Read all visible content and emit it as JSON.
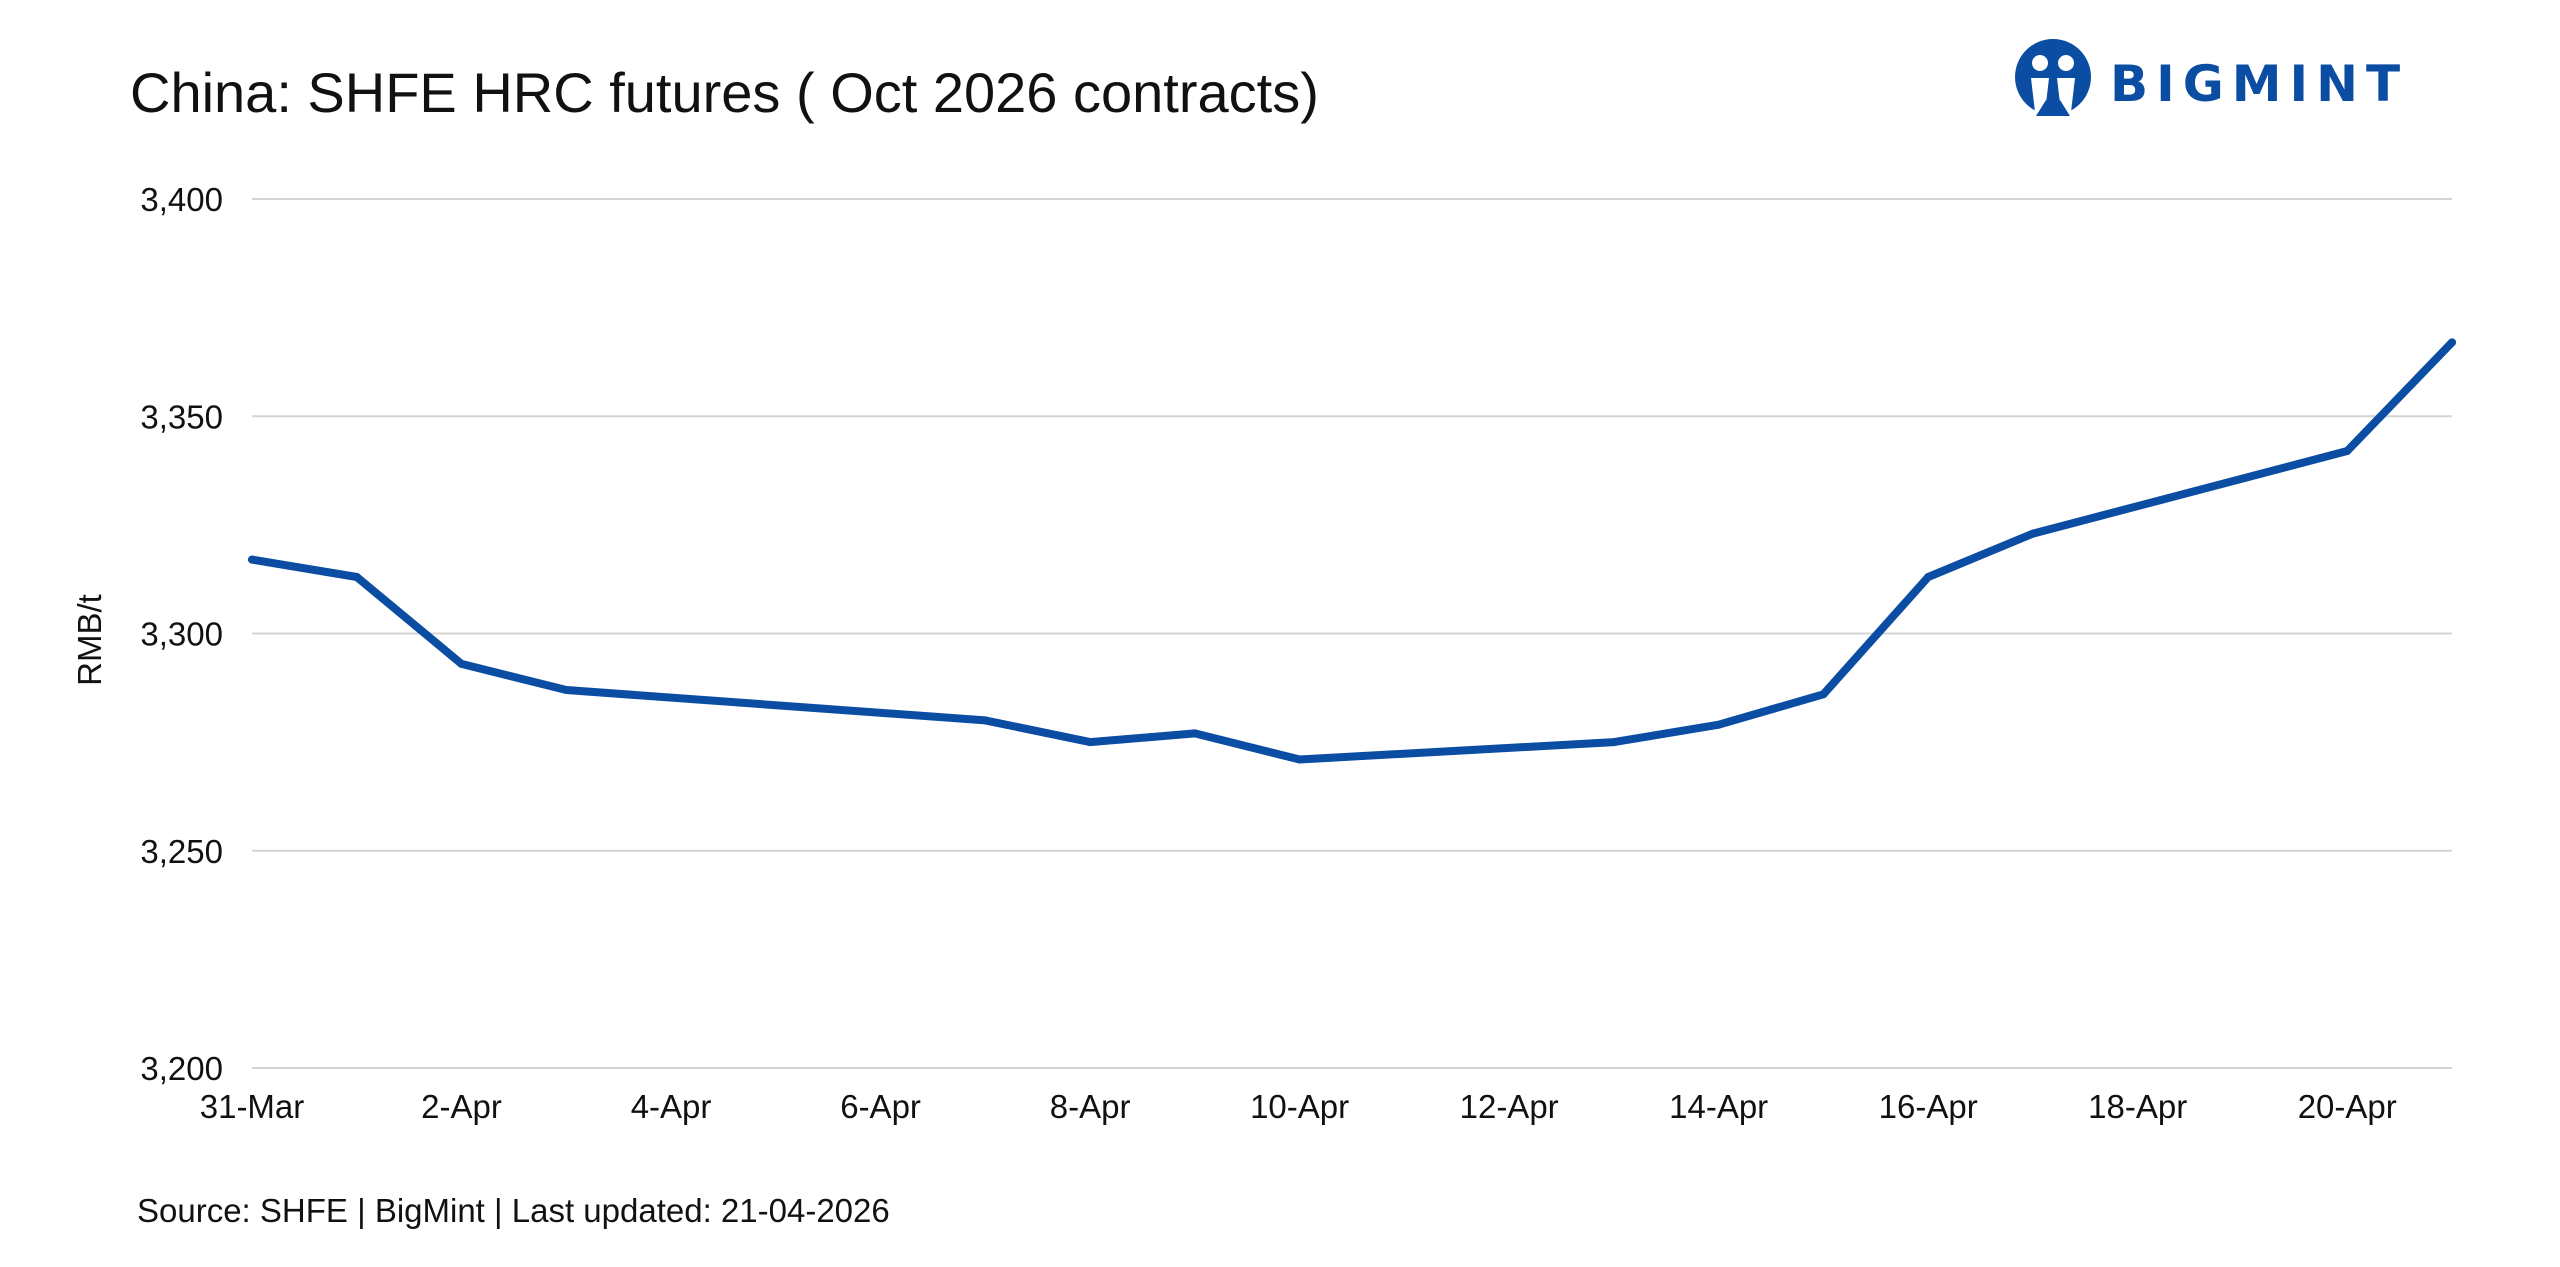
{
  "chart_data": {
    "type": "line",
    "title": "China: SHFE HRC futures ( Oct 2026 contracts)",
    "xlabel": "",
    "ylabel": "RMB/t",
    "ylim": [
      3200,
      3400
    ],
    "yticks": [
      3200,
      3250,
      3300,
      3350,
      3400
    ],
    "ytick_labels": [
      "3,200",
      "3,250",
      "3,300",
      "3,350",
      "3,400"
    ],
    "xlim": [
      "2026-03-31",
      "2026-04-21"
    ],
    "xticks": [
      "2026-03-31",
      "2026-04-02",
      "2026-04-04",
      "2026-04-06",
      "2026-04-08",
      "2026-04-10",
      "2026-04-12",
      "2026-04-14",
      "2026-04-16",
      "2026-04-18",
      "2026-04-20"
    ],
    "xtick_labels": [
      "31-Mar",
      "2-Apr",
      "4-Apr",
      "6-Apr",
      "8-Apr",
      "10-Apr",
      "12-Apr",
      "14-Apr",
      "16-Apr",
      "18-Apr",
      "20-Apr"
    ],
    "grid": "horizontal",
    "legend": "none",
    "series": [
      {
        "color": "#0a4da2",
        "points": [
          {
            "x": "2026-03-31",
            "y": 3317
          },
          {
            "x": "2026-04-01",
            "y": 3313
          },
          {
            "x": "2026-04-02",
            "y": 3293
          },
          {
            "x": "2026-04-03",
            "y": 3287
          },
          {
            "x": "2026-04-07",
            "y": 3280
          },
          {
            "x": "2026-04-08",
            "y": 3275
          },
          {
            "x": "2026-04-09",
            "y": 3277
          },
          {
            "x": "2026-04-10",
            "y": 3271
          },
          {
            "x": "2026-04-13",
            "y": 3275
          },
          {
            "x": "2026-04-14",
            "y": 3279
          },
          {
            "x": "2026-04-15",
            "y": 3286
          },
          {
            "x": "2026-04-16",
            "y": 3313
          },
          {
            "x": "2026-04-17",
            "y": 3323
          },
          {
            "x": "2026-04-20",
            "y": 3342
          },
          {
            "x": "2026-04-21",
            "y": 3367
          }
        ]
      }
    ]
  },
  "source": "Source: SHFE | BigMint | Last updated: 21-04-2026",
  "logo": {
    "text": "BIGMINT",
    "color": "#0a4da2",
    "icon": "bigmint-logo-icon"
  },
  "colors": {
    "line": "#0a4da2",
    "grid": "#d4d4d4",
    "text": "#111111"
  }
}
